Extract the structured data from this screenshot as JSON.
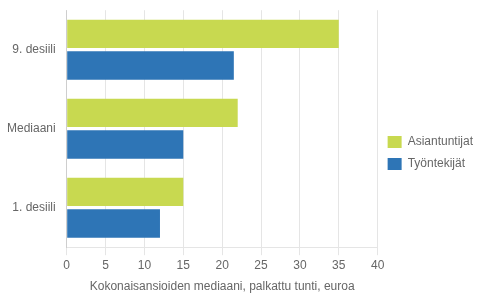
{
  "chart_data": {
    "type": "bar",
    "orientation": "horizontal",
    "categories": [
      "9. desiili",
      "Mediaani",
      "1. desiili"
    ],
    "series": [
      {
        "name": "Asiantuntijat",
        "color": "#c8d950",
        "values": [
          35,
          22,
          15
        ]
      },
      {
        "name": "Työntekijät",
        "color": "#2e75b6",
        "values": [
          21.5,
          15,
          12
        ]
      }
    ],
    "xlabel": "Kokonaisansioiden mediaani, palkattu tunti, euroa",
    "xlim": [
      0,
      40
    ],
    "xticks": [
      0,
      5,
      10,
      15,
      20,
      25,
      30,
      35,
      40
    ],
    "grid": true,
    "legend": "right"
  }
}
